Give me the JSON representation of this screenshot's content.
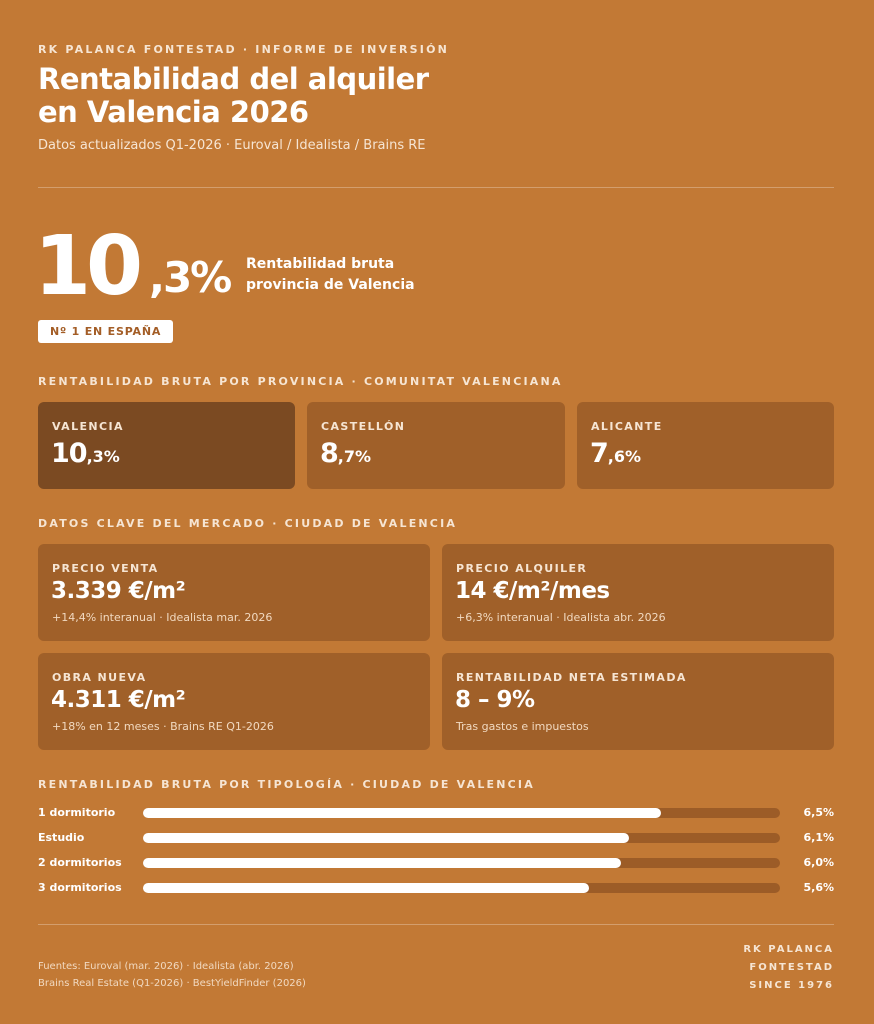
{
  "header": {
    "eyebrow": "RK PALANCA FONTESTAD · INFORME DE INVERSIÓN",
    "title_line1": "Rentabilidad del alquiler",
    "title_line2": "en Valencia 2026",
    "subtitle": "Datos actualizados Q1-2026 · Euroval / Idealista / Brains RE"
  },
  "hero": {
    "value_int": "10",
    "value_dec": ",3%",
    "label_line1": "Rentabilidad bruta",
    "label_line2": "provincia de Valencia",
    "badge": "Nº 1 EN ESPAÑA"
  },
  "provinces": {
    "section_label": "RENTABILIDAD BRUTA POR PROVINCIA · COMUNITAT VALENCIANA",
    "items": [
      {
        "name": "VALENCIA",
        "int": "10",
        "dec": ",3%"
      },
      {
        "name": "CASTELLÓN",
        "int": "8",
        "dec": ",7%"
      },
      {
        "name": "ALICANTE",
        "int": "7",
        "dec": ",6%"
      }
    ]
  },
  "market": {
    "section_label": "DATOS CLAVE DEL MERCADO · CIUDAD DE VALENCIA",
    "items": [
      {
        "label": "PRECIO VENTA",
        "value": "3.339 €/m²",
        "note": "+14,4% interanual · Idealista mar. 2026"
      },
      {
        "label": "PRECIO ALQUILER",
        "value": "14 €/m²/mes",
        "note": "+6,3% interanual · Idealista abr. 2026"
      },
      {
        "label": "OBRA NUEVA",
        "value": "4.311 €/m²",
        "note": "+18% en 12 meses · Brains RE Q1-2026"
      },
      {
        "label": "RENTABILIDAD NETA ESTIMADA",
        "value": "8 – 9%",
        "note": "Tras gastos e impuestos"
      }
    ]
  },
  "typology": {
    "section_label": "RENTABILIDAD BRUTA POR TIPOLOGÍA · CIUDAD DE VALENCIA",
    "scale_max": 8.0,
    "items": [
      {
        "label": "1 dormitorio",
        "value": 6.5,
        "value_text": "6,5%"
      },
      {
        "label": "Estudio",
        "value": 6.1,
        "value_text": "6,1%"
      },
      {
        "label": "2 dormitorios",
        "value": 6.0,
        "value_text": "6,0%"
      },
      {
        "label": "3 dormitorios",
        "value": 5.6,
        "value_text": "5,6%"
      }
    ]
  },
  "footer": {
    "sources_line1": "Fuentes: Euroval (mar. 2026) · Idealista (abr. 2026)",
    "sources_line2": "Brains Real Estate (Q1-2026) · BestYieldFinder (2026)",
    "brand_line1": "RK PALANCA",
    "brand_line2": "FONTESTAD",
    "brand_line3": "SINCE 1976"
  },
  "colors": {
    "background": "#C27935",
    "card": "#A06029",
    "card_highlight": "#7B4A22",
    "bar_track": "#9C5C27",
    "bar_fill": "#FFFFFF"
  }
}
